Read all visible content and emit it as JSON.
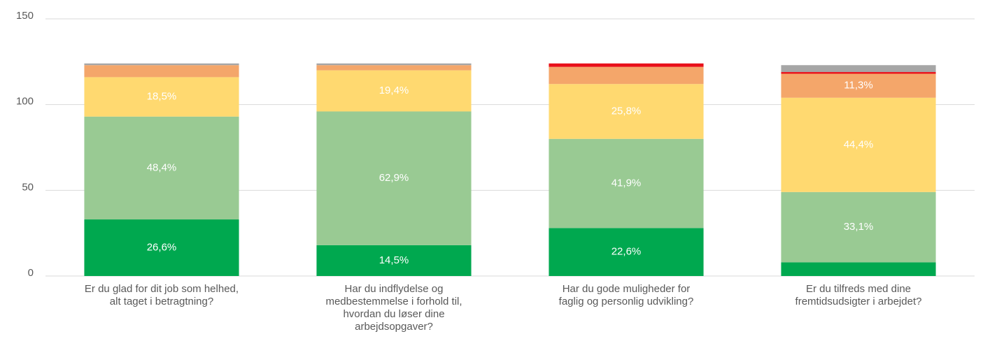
{
  "chart_data": {
    "type": "stacked_bar",
    "categories": [
      "Er du glad for dit job som helhed,\nalt taget i betragtning?",
      "Har du indflydelse og\nmedbestemmelse i forhold til,\nhvordan du løser dine\narbejdsopgaver?",
      "Har du gode muligheder for\nfaglig og personlig udvikling?",
      "Er du tilfreds med dine\nfremtidsudsigter i arbejdet?"
    ],
    "series": [
      {
        "color": "#00a84f",
        "values": [
          33,
          18,
          28,
          8
        ],
        "value_labels": [
          "26,6%",
          "14,5%",
          "22,6%",
          null
        ]
      },
      {
        "color": "#99ca93",
        "values": [
          60,
          78,
          52,
          41
        ],
        "value_labels": [
          "48,4%",
          "62,9%",
          "41,9%",
          "33,1%"
        ]
      },
      {
        "color": "#ffd970",
        "values": [
          23,
          24,
          32,
          55
        ],
        "value_labels": [
          "18,5%",
          "19,4%",
          "25,8%",
          "44,4%"
        ]
      },
      {
        "color": "#f4a66a",
        "values": [
          7,
          3,
          10,
          14
        ],
        "value_labels": [
          null,
          null,
          null,
          "11,3%"
        ]
      },
      {
        "color": "#e8101a",
        "values": [
          0,
          0,
          2,
          1
        ],
        "value_labels": [
          null,
          null,
          null,
          null
        ]
      },
      {
        "color": "#a6a6a6",
        "values": [
          1,
          1,
          0,
          4
        ],
        "value_labels": [
          null,
          null,
          null,
          null
        ]
      }
    ],
    "ylim": [
      0,
      150
    ],
    "yticks": [
      0,
      50,
      100,
      150
    ],
    "grid": true
  }
}
